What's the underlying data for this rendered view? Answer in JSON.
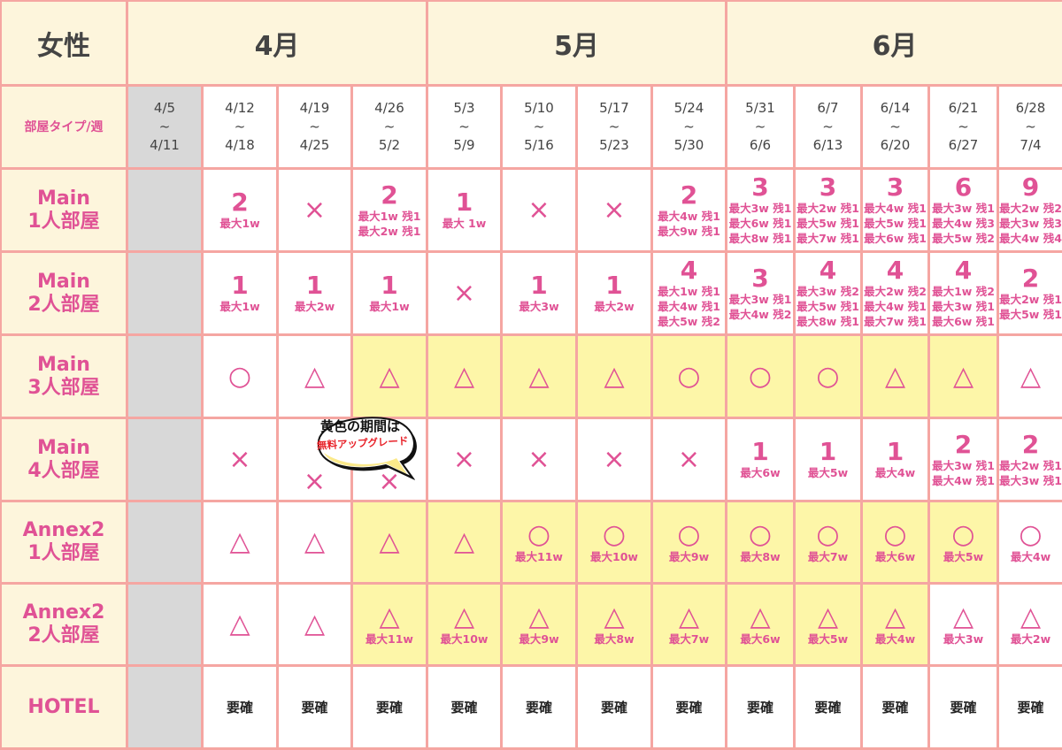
{
  "corner_label": "女性",
  "months": [
    "4月",
    "5月",
    "6月"
  ],
  "row_header_label": "部屋タイプ/週",
  "weeks": [
    [
      "4/5",
      "~",
      "4/11"
    ],
    [
      "4/12",
      "~",
      "4/18"
    ],
    [
      "4/19",
      "~",
      "4/25"
    ],
    [
      "4/26",
      "~",
      "5/2"
    ],
    [
      "5/3",
      "~",
      "5/9"
    ],
    [
      "5/10",
      "~",
      "5/16"
    ],
    [
      "5/17",
      "~",
      "5/23"
    ],
    [
      "5/24",
      "~",
      "5/30"
    ],
    [
      "5/31",
      "~",
      "6/6"
    ],
    [
      "6/7",
      "~",
      "6/13"
    ],
    [
      "6/14",
      "~",
      "6/20"
    ],
    [
      "6/21",
      "~",
      "6/27"
    ],
    [
      "6/28",
      "~",
      "7/4"
    ]
  ],
  "callout": {
    "line1": "黄色の期間は",
    "line2": "無料アップグレード",
    "highlight_color": "#fdf6a8"
  },
  "rows": [
    {
      "label": [
        "Main",
        "1人部屋"
      ],
      "cells": [
        {
          "v": "",
          "n": [],
          "y": 0,
          "g": 1
        },
        {
          "v": "2",
          "n": [
            "最大1w"
          ],
          "y": 0
        },
        {
          "v": "×",
          "n": [],
          "y": 0
        },
        {
          "v": "2",
          "n": [
            "最大1w 残1",
            "最大2w 残1"
          ],
          "y": 0
        },
        {
          "v": "1",
          "n": [
            "最大 1w"
          ],
          "y": 0
        },
        {
          "v": "×",
          "n": [],
          "y": 0
        },
        {
          "v": "×",
          "n": [],
          "y": 0
        },
        {
          "v": "2",
          "n": [
            "最大4w 残1",
            "最大9w 残1"
          ],
          "y": 0
        },
        {
          "v": "3",
          "n": [
            "最大3w 残1",
            "最大6w 残1",
            "最大8w 残1"
          ],
          "y": 0
        },
        {
          "v": "3",
          "n": [
            "最大2w 残1",
            "最大5w 残1",
            "最大7w 残1"
          ],
          "y": 0
        },
        {
          "v": "3",
          "n": [
            "最大4w 残1",
            "最大5w 残1",
            "最大6w 残1"
          ],
          "y": 0
        },
        {
          "v": "6",
          "n": [
            "最大3w 残1",
            "最大4w 残3",
            "最大5w 残2"
          ],
          "y": 0
        },
        {
          "v": "9",
          "n": [
            "最大2w 残2",
            "最大3w 残3",
            "最大4w 残4"
          ],
          "y": 0
        }
      ]
    },
    {
      "label": [
        "Main",
        "2人部屋"
      ],
      "cells": [
        {
          "v": "",
          "n": [],
          "y": 0,
          "g": 1
        },
        {
          "v": "1",
          "n": [
            "最大1w"
          ],
          "y": 0
        },
        {
          "v": "1",
          "n": [
            "最大2w"
          ],
          "y": 0
        },
        {
          "v": "1",
          "n": [
            "最大1w"
          ],
          "y": 0
        },
        {
          "v": "×",
          "n": [],
          "y": 0
        },
        {
          "v": "1",
          "n": [
            "最大3w"
          ],
          "y": 0
        },
        {
          "v": "1",
          "n": [
            "最大2w"
          ],
          "y": 0
        },
        {
          "v": "4",
          "n": [
            "最大1w 残1",
            "最大4w 残1",
            "最大5w 残2"
          ],
          "y": 0
        },
        {
          "v": "3",
          "n": [
            "最大3w 残1",
            "最大4w 残2"
          ],
          "y": 0
        },
        {
          "v": "4",
          "n": [
            "最大3w 残2",
            "最大5w 残1",
            "最大8w 残1"
          ],
          "y": 0
        },
        {
          "v": "4",
          "n": [
            "最大2w 残2",
            "最大4w 残1",
            "最大7w 残1"
          ],
          "y": 0
        },
        {
          "v": "4",
          "n": [
            "最大1w 残2",
            "最大3w 残1",
            "最大6w 残1"
          ],
          "y": 0
        },
        {
          "v": "2",
          "n": [
            "最大2w 残1",
            "最大5w 残1"
          ],
          "y": 0
        }
      ]
    },
    {
      "label": [
        "Main",
        "3人部屋"
      ],
      "cells": [
        {
          "v": "",
          "n": [],
          "y": 0,
          "g": 1
        },
        {
          "v": "○",
          "n": [],
          "y": 0
        },
        {
          "v": "△",
          "n": [],
          "y": 0
        },
        {
          "v": "△",
          "n": [],
          "y": 1
        },
        {
          "v": "△",
          "n": [],
          "y": 1
        },
        {
          "v": "△",
          "n": [],
          "y": 1
        },
        {
          "v": "△",
          "n": [],
          "y": 1
        },
        {
          "v": "○",
          "n": [],
          "y": 1
        },
        {
          "v": "○",
          "n": [],
          "y": 1
        },
        {
          "v": "○",
          "n": [],
          "y": 1
        },
        {
          "v": "△",
          "n": [],
          "y": 1
        },
        {
          "v": "△",
          "n": [],
          "y": 1
        },
        {
          "v": "△",
          "n": [],
          "y": 0
        }
      ]
    },
    {
      "label": [
        "Main",
        "4人部屋"
      ],
      "cells": [
        {
          "v": "",
          "n": [],
          "y": 0,
          "g": 1
        },
        {
          "v": "×",
          "n": [],
          "y": 0
        },
        {
          "v": "×",
          "n": [],
          "y": 0,
          "low": 1
        },
        {
          "v": "×",
          "n": [],
          "y": 0,
          "low": 1
        },
        {
          "v": "×",
          "n": [],
          "y": 0
        },
        {
          "v": "×",
          "n": [],
          "y": 0
        },
        {
          "v": "×",
          "n": [],
          "y": 0
        },
        {
          "v": "×",
          "n": [],
          "y": 0
        },
        {
          "v": "1",
          "n": [
            "最大6w"
          ],
          "y": 0
        },
        {
          "v": "1",
          "n": [
            "最大5w"
          ],
          "y": 0
        },
        {
          "v": "1",
          "n": [
            "最大4w"
          ],
          "y": 0
        },
        {
          "v": "2",
          "n": [
            "最大3w 残1",
            "最大4w 残1"
          ],
          "y": 0
        },
        {
          "v": "2",
          "n": [
            "最大2w 残1",
            "最大3w 残1"
          ],
          "y": 0
        }
      ]
    },
    {
      "label": [
        "Annex2",
        "1人部屋"
      ],
      "cells": [
        {
          "v": "",
          "n": [],
          "y": 0,
          "g": 1
        },
        {
          "v": "△",
          "n": [],
          "y": 0
        },
        {
          "v": "△",
          "n": [],
          "y": 0
        },
        {
          "v": "△",
          "n": [],
          "y": 1
        },
        {
          "v": "△",
          "n": [],
          "y": 1
        },
        {
          "v": "○",
          "n": [
            "最大11w"
          ],
          "y": 1
        },
        {
          "v": "○",
          "n": [
            "最大10w"
          ],
          "y": 1
        },
        {
          "v": "○",
          "n": [
            "最大9w"
          ],
          "y": 1
        },
        {
          "v": "○",
          "n": [
            "最大8w"
          ],
          "y": 1
        },
        {
          "v": "○",
          "n": [
            "最大7w"
          ],
          "y": 1
        },
        {
          "v": "○",
          "n": [
            "最大6w"
          ],
          "y": 1
        },
        {
          "v": "○",
          "n": [
            "最大5w"
          ],
          "y": 1
        },
        {
          "v": "○",
          "n": [
            "最大4w"
          ],
          "y": 0
        }
      ]
    },
    {
      "label": [
        "Annex2",
        "2人部屋"
      ],
      "cells": [
        {
          "v": "",
          "n": [],
          "y": 0,
          "g": 1
        },
        {
          "v": "△",
          "n": [],
          "y": 0
        },
        {
          "v": "△",
          "n": [],
          "y": 0
        },
        {
          "v": "△",
          "n": [
            "最大11w"
          ],
          "y": 1
        },
        {
          "v": "△",
          "n": [
            "最大10w"
          ],
          "y": 1
        },
        {
          "v": "△",
          "n": [
            "最大9w"
          ],
          "y": 1
        },
        {
          "v": "△",
          "n": [
            "最大8w"
          ],
          "y": 1
        },
        {
          "v": "△",
          "n": [
            "最大7w"
          ],
          "y": 1
        },
        {
          "v": "△",
          "n": [
            "最大6w"
          ],
          "y": 1
        },
        {
          "v": "△",
          "n": [
            "最大5w"
          ],
          "y": 1
        },
        {
          "v": "△",
          "n": [
            "最大4w"
          ],
          "y": 1
        },
        {
          "v": "△",
          "n": [
            "最大3w"
          ],
          "y": 0
        },
        {
          "v": "△",
          "n": [
            "最大2w"
          ],
          "y": 0
        }
      ]
    },
    {
      "label": [
        "HOTEL"
      ],
      "cells": [
        {
          "v": "",
          "n": [],
          "y": 0,
          "g": 1
        },
        {
          "t": "要確"
        },
        {
          "t": "要確"
        },
        {
          "t": "要確"
        },
        {
          "t": "要確"
        },
        {
          "t": "要確"
        },
        {
          "t": "要確"
        },
        {
          "t": "要確"
        },
        {
          "t": "要確"
        },
        {
          "t": "要確"
        },
        {
          "t": "要確"
        },
        {
          "t": "要確"
        },
        {
          "t": "要確"
        }
      ]
    }
  ]
}
